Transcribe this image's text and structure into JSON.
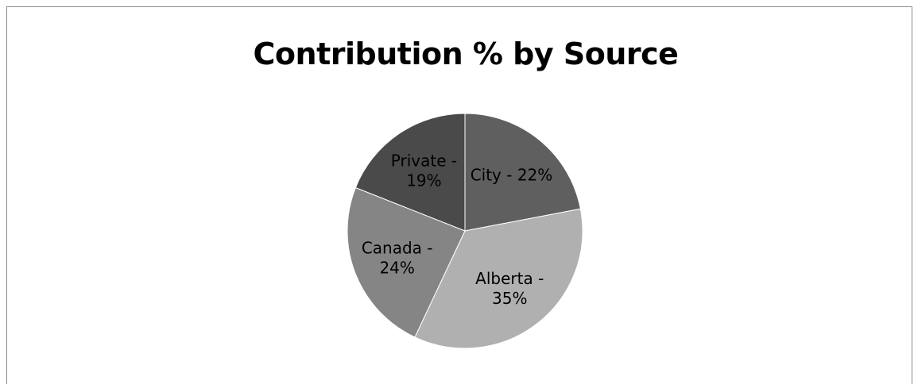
{
  "chart_data": {
    "type": "pie",
    "title": "Contribution % by Source",
    "slices": [
      {
        "label": "City",
        "value": 22,
        "color": "#5f5f5f",
        "label_lines": [
          "City - 22%"
        ]
      },
      {
        "label": "Alberta",
        "value": 35,
        "color": "#b0b0b0",
        "label_lines": [
          "Alberta -",
          "35%"
        ]
      },
      {
        "label": "Canada",
        "value": 24,
        "color": "#858585",
        "label_lines": [
          "Canada -",
          "24%"
        ]
      },
      {
        "label": "Private",
        "value": 19,
        "color": "#4a4a4a",
        "label_lines": [
          "Private -",
          "19%"
        ]
      }
    ],
    "legend": "none"
  }
}
